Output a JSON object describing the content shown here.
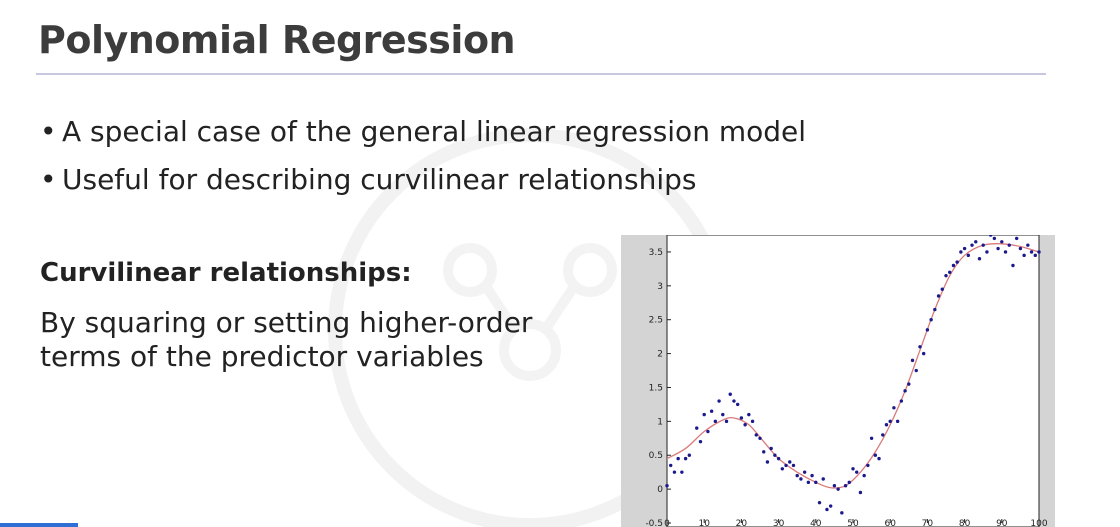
{
  "slide": {
    "title": "Polynomial Regression",
    "bullets": [
      "A special case of the general linear regression model",
      "Useful for describing curvilinear relationships"
    ],
    "subheading": "Curvilinear relationships:",
    "body_lines": [
      "By squaring or setting higher-order",
      "terms of the predictor variables"
    ]
  },
  "player": {
    "progress": 0.07,
    "progress_color": "#2f6fd3"
  },
  "chart_data": {
    "type": "scatter",
    "xlim": [
      0,
      100
    ],
    "ylim": [
      -0.5,
      3.75
    ],
    "x_ticks": [
      "0",
      "10",
      "20",
      "30",
      "40",
      "50",
      "60",
      "70",
      "80",
      "90",
      "100"
    ],
    "y_ticks": [
      "-0.5",
      "0",
      "0.5",
      "1",
      "1.5",
      "2",
      "2.5",
      "3",
      "3.5"
    ],
    "point_color": "#1a1a8c",
    "fit_color": "#d97a7a",
    "grid": false,
    "points": [
      [
        0,
        0.05
      ],
      [
        1,
        0.35
      ],
      [
        2,
        0.25
      ],
      [
        3,
        0.45
      ],
      [
        4,
        0.25
      ],
      [
        5,
        0.45
      ],
      [
        6,
        0.5
      ],
      [
        8,
        0.9
      ],
      [
        9,
        0.7
      ],
      [
        10,
        1.1
      ],
      [
        11,
        0.85
      ],
      [
        12,
        1.15
      ],
      [
        13,
        1.0
      ],
      [
        14,
        1.3
      ],
      [
        15,
        1.1
      ],
      [
        16,
        1.0
      ],
      [
        17,
        1.4
      ],
      [
        18,
        1.3
      ],
      [
        19,
        1.25
      ],
      [
        20,
        1.05
      ],
      [
        21,
        0.95
      ],
      [
        22,
        1.1
      ],
      [
        23,
        1.0
      ],
      [
        24,
        0.8
      ],
      [
        25,
        0.75
      ],
      [
        26,
        0.55
      ],
      [
        27,
        0.4
      ],
      [
        28,
        0.6
      ],
      [
        29,
        0.5
      ],
      [
        30,
        0.45
      ],
      [
        31,
        0.3
      ],
      [
        32,
        0.35
      ],
      [
        33,
        0.4
      ],
      [
        34,
        0.35
      ],
      [
        35,
        0.2
      ],
      [
        36,
        0.15
      ],
      [
        37,
        0.25
      ],
      [
        38,
        0.1
      ],
      [
        39,
        0.2
      ],
      [
        40,
        0.1
      ],
      [
        41,
        -0.2
      ],
      [
        42,
        0.15
      ],
      [
        43,
        -0.3
      ],
      [
        44,
        -0.25
      ],
      [
        45,
        0.05
      ],
      [
        46,
        0.0
      ],
      [
        47,
        -0.35
      ],
      [
        48,
        0.05
      ],
      [
        49,
        0.1
      ],
      [
        50,
        0.3
      ],
      [
        51,
        0.25
      ],
      [
        52,
        -0.05
      ],
      [
        53,
        0.2
      ],
      [
        54,
        0.35
      ],
      [
        55,
        0.75
      ],
      [
        56,
        0.5
      ],
      [
        57,
        0.45
      ],
      [
        58,
        0.8
      ],
      [
        59,
        0.95
      ],
      [
        60,
        1.0
      ],
      [
        61,
        1.2
      ],
      [
        62,
        1.0
      ],
      [
        63,
        1.3
      ],
      [
        64,
        1.45
      ],
      [
        65,
        1.55
      ],
      [
        66,
        1.9
      ],
      [
        67,
        1.75
      ],
      [
        68,
        2.1
      ],
      [
        69,
        2.0
      ],
      [
        70,
        2.35
      ],
      [
        71,
        2.5
      ],
      [
        72,
        2.65
      ],
      [
        73,
        2.85
      ],
      [
        74,
        2.95
      ],
      [
        75,
        3.15
      ],
      [
        76,
        3.2
      ],
      [
        77,
        3.3
      ],
      [
        78,
        3.35
      ],
      [
        79,
        3.5
      ],
      [
        80,
        3.55
      ],
      [
        81,
        3.45
      ],
      [
        82,
        3.6
      ],
      [
        83,
        3.65
      ],
      [
        84,
        3.4
      ],
      [
        85,
        3.6
      ],
      [
        86,
        3.5
      ],
      [
        87,
        3.75
      ],
      [
        88,
        3.7
      ],
      [
        89,
        3.55
      ],
      [
        90,
        3.65
      ],
      [
        91,
        3.5
      ],
      [
        92,
        3.6
      ],
      [
        93,
        3.3
      ],
      [
        94,
        3.7
      ],
      [
        95,
        3.55
      ],
      [
        96,
        3.45
      ],
      [
        97,
        3.6
      ],
      [
        98,
        3.5
      ],
      [
        99,
        3.45
      ],
      [
        100,
        3.5
      ]
    ],
    "fit_curve": [
      [
        0,
        0.45
      ],
      [
        5,
        0.6
      ],
      [
        10,
        0.85
      ],
      [
        15,
        1.02
      ],
      [
        18,
        1.05
      ],
      [
        22,
        0.95
      ],
      [
        26,
        0.7
      ],
      [
        30,
        0.45
      ],
      [
        35,
        0.25
      ],
      [
        40,
        0.1
      ],
      [
        44,
        0.02
      ],
      [
        48,
        0.05
      ],
      [
        52,
        0.25
      ],
      [
        56,
        0.55
      ],
      [
        60,
        0.95
      ],
      [
        64,
        1.45
      ],
      [
        68,
        2.05
      ],
      [
        72,
        2.65
      ],
      [
        76,
        3.15
      ],
      [
        80,
        3.45
      ],
      [
        85,
        3.6
      ],
      [
        90,
        3.62
      ],
      [
        95,
        3.58
      ],
      [
        100,
        3.5
      ]
    ]
  }
}
